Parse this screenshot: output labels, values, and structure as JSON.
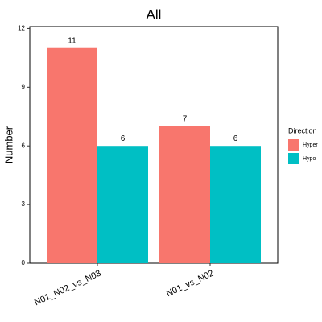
{
  "chart_data": {
    "type": "bar",
    "title": "All",
    "y_label": "Number",
    "categories": [
      "N01_N02_vs_N03",
      "N01_vs_N02"
    ],
    "series": [
      {
        "name": "Hyper",
        "color": "#F8766D",
        "values": [
          11,
          7
        ]
      },
      {
        "name": "Hypo",
        "color": "#00BFC4",
        "values": [
          6,
          6
        ]
      }
    ],
    "ylim": [
      0,
      12.1
    ],
    "yticks": [
      0,
      3,
      6,
      9,
      12
    ],
    "grid": false,
    "legend_title": "Direction",
    "legend_position": "right"
  }
}
